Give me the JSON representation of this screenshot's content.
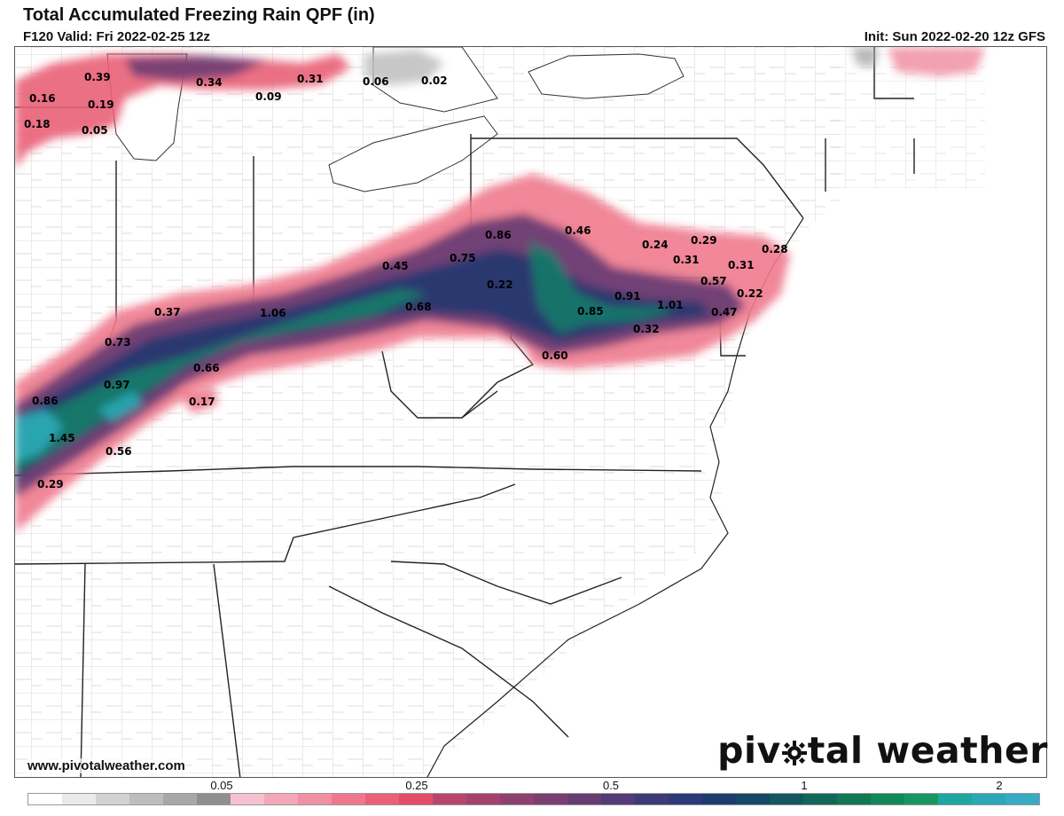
{
  "header": {
    "title": "Total Accumulated Freezing Rain QPF (in)",
    "valid": "F120 Valid: Fri 2022-02-25 12z",
    "init": "Init: Sun 2022-02-20 12z GFS"
  },
  "footer": {
    "website": "www.pivotalweather.com",
    "brand_left": "piv",
    "brand_right": "tal weather"
  },
  "colorbar": {
    "colors": [
      "#ffffff",
      "#eaeaea",
      "#d2d2d2",
      "#bdbdbd",
      "#a8a8a8",
      "#8f8f8f",
      "#f5c0cf",
      "#f3a8b9",
      "#f090a3",
      "#ed788d",
      "#ea6077",
      "#e44d68",
      "#b8456a",
      "#a3436c",
      "#8e416e",
      "#7a3f71",
      "#663d73",
      "#523b76",
      "#3d3a78",
      "#2c3a78",
      "#1e3b6e",
      "#174866",
      "#14575f",
      "#126759",
      "#117755",
      "#128758",
      "#17975f",
      "#1ea79f",
      "#2aa8b4",
      "#38aac4"
    ],
    "ticks": [
      "0.05",
      "0.25",
      "0.5",
      "1",
      "2"
    ]
  },
  "map_labels": [
    {
      "id": "v1",
      "text": "0.39"
    },
    {
      "id": "v2",
      "text": "0.34"
    },
    {
      "id": "v3",
      "text": "0.31"
    },
    {
      "id": "v4",
      "text": "0.06"
    },
    {
      "id": "v5",
      "text": "0.02"
    },
    {
      "id": "v6",
      "text": "0.16"
    },
    {
      "id": "v7",
      "text": "0.19"
    },
    {
      "id": "v8",
      "text": "0.09"
    },
    {
      "id": "v9",
      "text": "0.18"
    },
    {
      "id": "v10",
      "text": "0.05"
    },
    {
      "id": "v11",
      "text": "0.86"
    },
    {
      "id": "v12",
      "text": "0.46"
    },
    {
      "id": "v13",
      "text": "0.24"
    },
    {
      "id": "v14",
      "text": "0.29"
    },
    {
      "id": "v15",
      "text": "0.28"
    },
    {
      "id": "v16",
      "text": "0.31"
    },
    {
      "id": "v17",
      "text": "0.31"
    },
    {
      "id": "v18",
      "text": "0.45"
    },
    {
      "id": "v19",
      "text": "0.75"
    },
    {
      "id": "v20",
      "text": "0.22"
    },
    {
      "id": "v21",
      "text": "0.57"
    },
    {
      "id": "v22",
      "text": "0.22"
    },
    {
      "id": "v23",
      "text": "0.91"
    },
    {
      "id": "v24",
      "text": "1.01"
    },
    {
      "id": "v25",
      "text": "0.37"
    },
    {
      "id": "v26",
      "text": "1.06"
    },
    {
      "id": "v27",
      "text": "0.68"
    },
    {
      "id": "v28",
      "text": "0.85"
    },
    {
      "id": "v29",
      "text": "0.47"
    },
    {
      "id": "v30",
      "text": "0.32"
    },
    {
      "id": "v31",
      "text": "0.73"
    },
    {
      "id": "v32",
      "text": "0.60"
    },
    {
      "id": "v33",
      "text": "0.66"
    },
    {
      "id": "v34",
      "text": "0.97"
    },
    {
      "id": "v35",
      "text": "0.86"
    },
    {
      "id": "v36",
      "text": "0.17"
    },
    {
      "id": "v37",
      "text": "1.45"
    },
    {
      "id": "v38",
      "text": "0.56"
    },
    {
      "id": "v39",
      "text": "0.29"
    }
  ]
}
